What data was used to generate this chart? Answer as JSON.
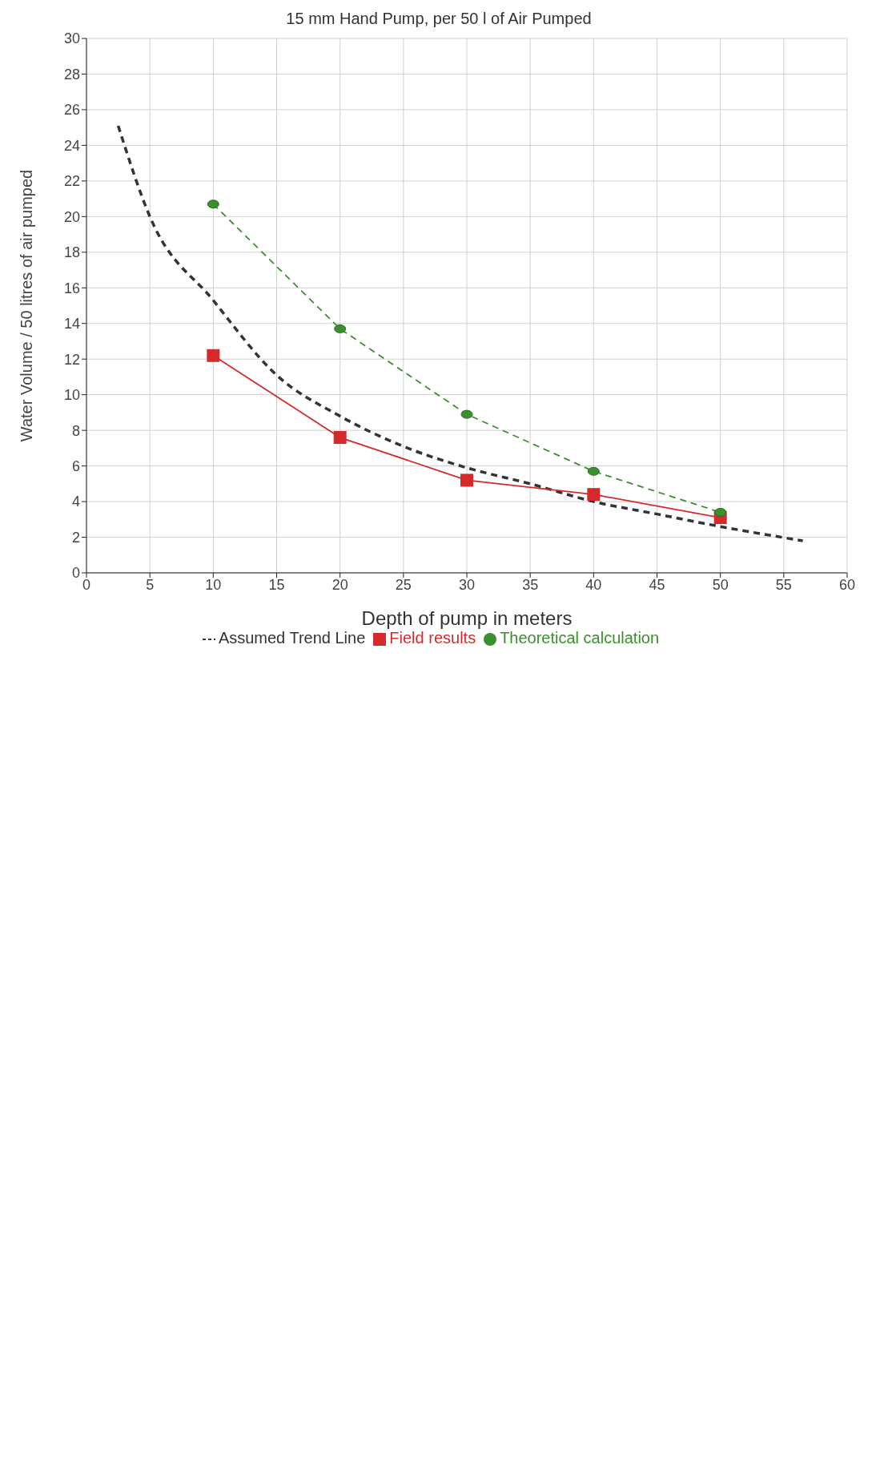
{
  "chart_data": {
    "type": "line",
    "title": "15 mm Hand Pump, per 50 l of Air Pumped",
    "xlabel": "Depth of pump in meters",
    "ylabel": "Water Volume / 50 litres of air pumped",
    "xlim": [
      0,
      60
    ],
    "xticks": [
      0,
      5,
      10,
      15,
      20,
      25,
      30,
      35,
      40,
      45,
      50,
      55,
      60
    ],
    "ylim": [
      0,
      30
    ],
    "yticks": [
      0,
      2,
      4,
      6,
      8,
      10,
      12,
      14,
      16,
      18,
      20,
      22,
      24,
      26,
      28,
      30
    ],
    "grid": true,
    "legend": "bottom",
    "series": [
      {
        "name": "Assumed Trend Line",
        "color": "#333333",
        "line_style": "dashed",
        "marker": "none",
        "x": [
          2.5,
          5,
          10,
          15,
          20,
          25,
          30,
          35,
          40,
          45,
          50,
          56.5
        ],
        "values": [
          25.1,
          20.0,
          15.3,
          11.1,
          8.8,
          7.1,
          5.9,
          5.0,
          4.0,
          3.3,
          2.6,
          1.8
        ]
      },
      {
        "name": "Field results",
        "color": "#d42a2a",
        "line_style": "solid",
        "marker": "square",
        "x": [
          10,
          20,
          30,
          40,
          50
        ],
        "values": [
          12.2,
          7.6,
          5.2,
          4.4,
          3.1
        ]
      },
      {
        "name": "Theoretical calculation",
        "color": "#3a8f2e",
        "line_style": "dashed",
        "marker": "circle",
        "x": [
          10,
          20,
          30,
          40,
          50
        ],
        "values": [
          20.7,
          13.7,
          8.9,
          5.7,
          3.4
        ]
      }
    ]
  }
}
